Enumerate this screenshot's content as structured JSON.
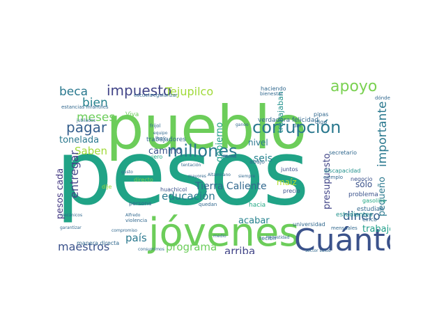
{
  "cloud": {
    "words": [
      {
        "t": "pesos",
        "c": "#20a386"
      },
      {
        "t": "pueblo",
        "c": "#6ccd5a"
      },
      {
        "t": "jóvenes",
        "c": "#6ccd5a"
      },
      {
        "t": "Cuánto",
        "c": "#3b528b"
      },
      {
        "t": "millones",
        "c": "#2a788e"
      },
      {
        "t": "corrupción",
        "c": "#2a788e"
      },
      {
        "t": "apoyo",
        "c": "#7ad151"
      },
      {
        "t": "impuesto",
        "c": "#414487"
      },
      {
        "t": "Tejupilco",
        "c": "#a0da39"
      },
      {
        "t": "pagar",
        "c": "#355f8d"
      },
      {
        "t": "meses",
        "c": "#6ccd5a"
      },
      {
        "t": "beca",
        "c": "#2a788e"
      },
      {
        "t": "bien",
        "c": "#26828e"
      },
      {
        "t": "Saben",
        "c": "#a0da39"
      },
      {
        "t": "tonelada",
        "c": "#2a788e"
      },
      {
        "t": "entregar",
        "c": "#414487"
      },
      {
        "t": "pesos cada",
        "c": "#443983"
      },
      {
        "t": "maestros",
        "c": "#3b528b"
      },
      {
        "t": "país",
        "c": "#2a788e"
      },
      {
        "t": "programa",
        "c": "#6ccd5a"
      },
      {
        "t": "arriba",
        "c": "#414487"
      },
      {
        "t": "educación",
        "c": "#2a788e"
      },
      {
        "t": "Tierra Caliente",
        "c": "#31688e"
      },
      {
        "t": "dinero",
        "c": "#355f8d"
      },
      {
        "t": "trabajo",
        "c": "#1f9e89"
      },
      {
        "t": "maíz",
        "c": "#b5de2b"
      },
      {
        "t": "acabar",
        "c": "#26828e"
      },
      {
        "t": "seis",
        "c": "#26828e"
      },
      {
        "t": "nivel",
        "c": "#2a788e"
      },
      {
        "t": "camino",
        "c": "#3b528b"
      },
      {
        "t": "importante",
        "c": "#2a788e"
      },
      {
        "t": "gobierno",
        "c": "#1f9e89"
      },
      {
        "t": "presupuesto",
        "c": "#414487"
      },
      {
        "t": "pequeño",
        "c": "#2a788e"
      },
      {
        "t": "sólo",
        "c": "#3b528b"
      },
      {
        "t": "trabajaban",
        "c": "#21918c"
      },
      {
        "t": "haciendo",
        "c": "#31688e"
      },
      {
        "t": "Viva",
        "c": "#6ccd5a"
      },
      {
        "t": "trabajadores",
        "c": "#31688e"
      },
      {
        "t": "quiero",
        "c": "#22a884"
      },
      {
        "t": "quedan",
        "c": "#31688e"
      },
      {
        "t": "persona",
        "c": "#31688e"
      },
      {
        "t": "huachicol",
        "c": "#3b528b"
      },
      {
        "t": "directo",
        "c": "#7ad151"
      },
      {
        "t": "dije",
        "c": "#a0da39"
      },
      {
        "t": "hacia",
        "c": "#22a884"
      },
      {
        "t": "juntos",
        "c": "#3b528b"
      },
      {
        "t": "precio",
        "c": "#3b528b"
      },
      {
        "t": "estudiantes",
        "c": "#21918c"
      },
      {
        "t": "estudian",
        "c": "#31688e"
      },
      {
        "t": "negocio",
        "c": "#3b528b"
      },
      {
        "t": "problema",
        "c": "#3b528b"
      },
      {
        "t": "secretario",
        "c": "#31688e"
      },
      {
        "t": "verdadera felicidad",
        "c": "#31688e"
      },
      {
        "t": "discapacidad",
        "c": "#21918c"
      },
      {
        "t": "gasolina",
        "c": "#22a884"
      },
      {
        "t": "universidad",
        "c": "#31688e"
      },
      {
        "t": "mensuales",
        "c": "#31688e"
      },
      {
        "t": "cinco",
        "c": "#31688e"
      },
      {
        "t": "recibir",
        "c": "#31688e"
      },
      {
        "t": "sector salud",
        "c": "#31688e"
      },
      {
        "t": "manera directa",
        "c": "#31688e"
      },
      {
        "t": "consumimos",
        "c": "#31688e"
      },
      {
        "t": "medio",
        "c": "#31688e"
      },
      {
        "t": "regularizar",
        "c": "#31688e"
      },
      {
        "t": "escuela",
        "c": "#31688e"
      },
      {
        "t": "estancias infantiles",
        "c": "#31688e"
      },
      {
        "t": "jubilados",
        "c": "#31688e"
      },
      {
        "t": "frijol",
        "c": "#31688e"
      },
      {
        "t": "equipo",
        "c": "#31688e"
      },
      {
        "t": "hoy",
        "c": "#31688e"
      },
      {
        "t": "pipas",
        "c": "#31688e"
      },
      {
        "t": "digo",
        "c": "#31688e"
      },
      {
        "t": "dar",
        "c": "#31688e"
      },
      {
        "t": "bienestar",
        "c": "#31688e"
      },
      {
        "t": "ganoo",
        "c": "#31688e"
      },
      {
        "t": "abajo",
        "c": "#31688e"
      },
      {
        "t": "llama",
        "c": "#31688e"
      },
      {
        "t": "mayores",
        "c": "#31688e"
      },
      {
        "t": "Altamirano",
        "c": "#31688e"
      },
      {
        "t": "siempre",
        "c": "#31688e"
      },
      {
        "t": "honestidad",
        "c": "#31688e"
      },
      {
        "t": "compromiso",
        "c": "#31688e"
      },
      {
        "t": "violencia",
        "c": "#31688e"
      },
      {
        "t": "Alfredo",
        "c": "#31688e"
      },
      {
        "t": "garantizar",
        "c": "#31688e"
      },
      {
        "t": "mecánicos",
        "c": "#31688e"
      },
      {
        "t": "gusto",
        "c": "#31688e"
      },
      {
        "t": "tentación",
        "c": "#31688e"
      },
      {
        "t": "ejemplo",
        "c": "#31688e"
      },
      {
        "t": "dónde",
        "c": "#31688e"
      }
    ]
  }
}
